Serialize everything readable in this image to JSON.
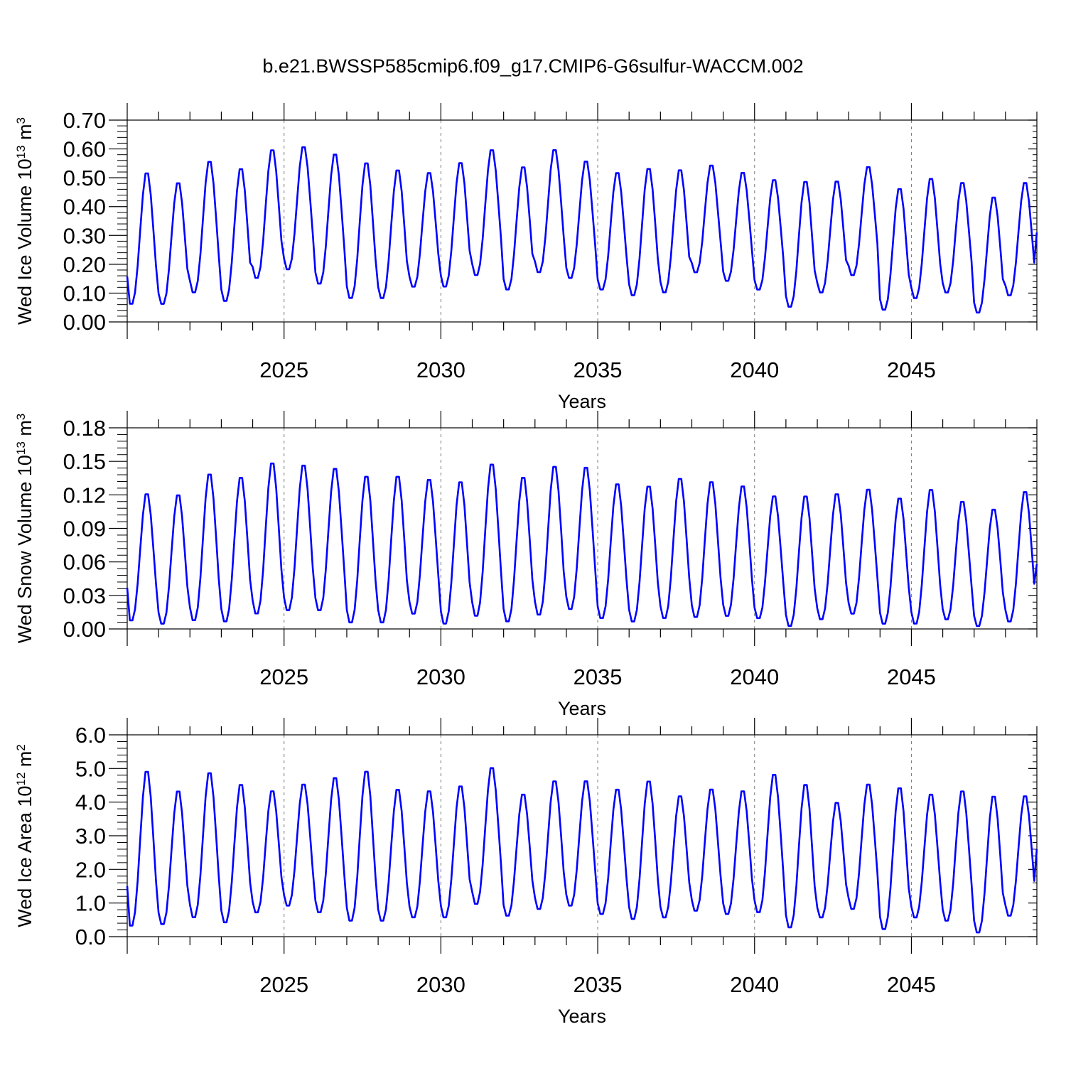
{
  "title": "b.e21.BWSSP585cmip6.f09_g17.CMIP6-G6sulfur-WACCM.002",
  "colors": {
    "series": "#0000ff",
    "axis": "#000000",
    "grid": "#777777"
  },
  "chart_data": [
    {
      "type": "line",
      "ylabel": "Wed Ice Volume 10",
      "ylabel_exp": "13",
      "ylabel_unit": " m",
      "ylabel_unit_exp": "3",
      "xlabel": "Years",
      "xlim": [
        2020.0,
        2049.0
      ],
      "ylim": [
        0.0,
        0.7
      ],
      "xticks": [
        2025,
        2030,
        2035,
        2040,
        2045
      ],
      "yticks": [
        "0.00",
        "0.10",
        "0.20",
        "0.30",
        "0.40",
        "0.50",
        "0.60",
        "0.70"
      ],
      "grid_x": true,
      "x_start": 2020.0,
      "x_step": 0.08333,
      "troughs": [
        0.06,
        0.06,
        0.1,
        0.07,
        0.15,
        0.18,
        0.13,
        0.08,
        0.08,
        0.12,
        0.12,
        0.16,
        0.11,
        0.17,
        0.15,
        0.11,
        0.09,
        0.1,
        0.17,
        0.14,
        0.11,
        0.05,
        0.1,
        0.16,
        0.04,
        0.08,
        0.1,
        0.03,
        0.09
      ],
      "peaks": [
        0.525,
        0.49,
        0.565,
        0.54,
        0.605,
        0.615,
        0.59,
        0.56,
        0.535,
        0.525,
        0.56,
        0.605,
        0.545,
        0.605,
        0.565,
        0.525,
        0.54,
        0.535,
        0.55,
        0.525,
        0.5,
        0.495,
        0.495,
        0.545,
        0.47,
        0.505,
        0.49,
        0.44,
        0.49
      ],
      "end_value": 0.31
    },
    {
      "type": "line",
      "ylabel": "Wed Snow Volume 10",
      "ylabel_exp": "13",
      "ylabel_unit": " m",
      "ylabel_unit_exp": "3",
      "xlabel": "Years",
      "xlim": [
        2020.0,
        2049.0
      ],
      "ylim": [
        0.0,
        0.18
      ],
      "xticks": [
        2025,
        2030,
        2035,
        2040,
        2045
      ],
      "yticks": [
        "0.00",
        "0.03",
        "0.06",
        "0.09",
        "0.12",
        "0.15",
        "0.18"
      ],
      "grid_x": true,
      "x_start": 2020.0,
      "x_step": 0.08333,
      "troughs": [
        0.007,
        0.004,
        0.007,
        0.006,
        0.013,
        0.016,
        0.016,
        0.005,
        0.005,
        0.013,
        0.004,
        0.011,
        0.006,
        0.012,
        0.017,
        0.009,
        0.006,
        0.009,
        0.01,
        0.011,
        0.009,
        0.002,
        0.008,
        0.013,
        0.004,
        0.004,
        0.008,
        0.002,
        0.006
      ],
      "peaks": [
        0.123,
        0.122,
        0.141,
        0.138,
        0.151,
        0.149,
        0.146,
        0.139,
        0.139,
        0.136,
        0.134,
        0.15,
        0.138,
        0.148,
        0.147,
        0.132,
        0.13,
        0.137,
        0.134,
        0.13,
        0.121,
        0.121,
        0.123,
        0.127,
        0.119,
        0.127,
        0.116,
        0.109,
        0.125
      ],
      "end_value": 0.058
    },
    {
      "type": "line",
      "ylabel": "Wed Ice Area 10",
      "ylabel_exp": "12",
      "ylabel_unit": " m",
      "ylabel_unit_exp": "2",
      "xlabel": "Years",
      "xlim": [
        2020.0,
        2049.0
      ],
      "ylim": [
        0.0,
        6.0
      ],
      "xticks": [
        2025,
        2030,
        2035,
        2040,
        2045
      ],
      "yticks": [
        "0.0",
        "1.0",
        "2.0",
        "3.0",
        "4.0",
        "5.0",
        "6.0"
      ],
      "grid_x": true,
      "x_start": 2020.0,
      "x_step": 0.08333,
      "troughs": [
        0.3,
        0.35,
        0.55,
        0.4,
        0.7,
        0.9,
        0.7,
        0.45,
        0.45,
        0.55,
        0.55,
        0.95,
        0.6,
        0.8,
        0.9,
        0.65,
        0.5,
        0.55,
        0.75,
        0.65,
        0.7,
        0.25,
        0.55,
        0.8,
        0.2,
        0.55,
        0.45,
        0.1,
        0.6
      ],
      "peaks": [
        5.0,
        4.4,
        4.95,
        4.6,
        4.4,
        4.6,
        4.8,
        5.0,
        4.45,
        4.4,
        4.55,
        5.1,
        4.3,
        4.7,
        4.7,
        4.45,
        4.7,
        4.25,
        4.45,
        4.4,
        4.9,
        4.6,
        4.05,
        4.6,
        4.5,
        4.3,
        4.4,
        4.25,
        4.25
      ],
      "end_value": 2.6
    }
  ]
}
